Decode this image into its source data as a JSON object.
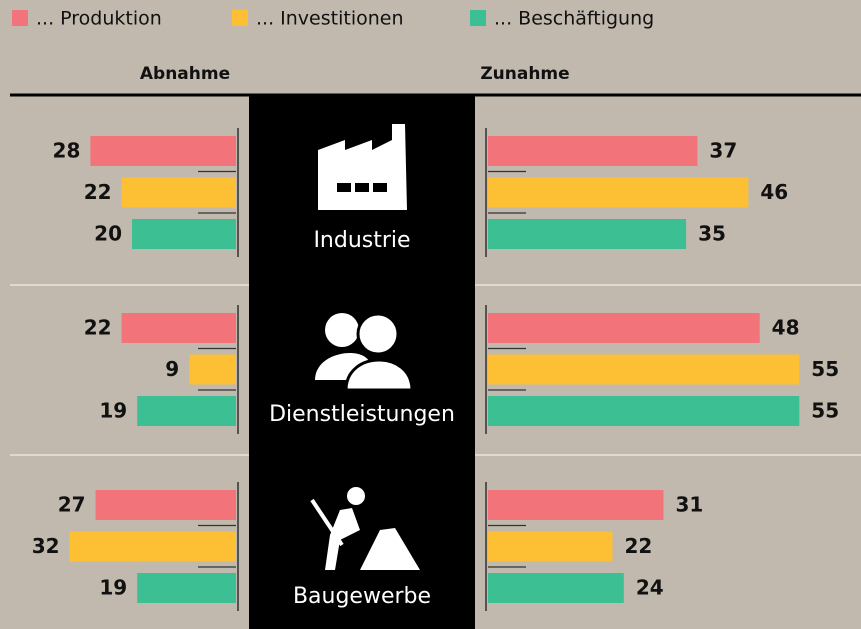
{
  "chart_data": {
    "type": "butterfly",
    "sides": [
      "Abnahme",
      "Zunahme"
    ],
    "categories": [
      "Industrie",
      "Dienstleistungen",
      "Baugewerbe"
    ],
    "series": [
      {
        "name": "... Produktion",
        "color": "#f2737a",
        "decrease": [
          28,
          22,
          27
        ],
        "increase": [
          37,
          48,
          31
        ]
      },
      {
        "name": "... Investitionen",
        "color": "#fdbf33",
        "decrease": [
          22,
          9,
          32
        ],
        "increase": [
          46,
          55,
          22
        ]
      },
      {
        "name": "... Beschäftigung",
        "color": "#3dbf94",
        "decrease": [
          20,
          19,
          19
        ],
        "increase": [
          35,
          55,
          24
        ]
      }
    ]
  }
}
